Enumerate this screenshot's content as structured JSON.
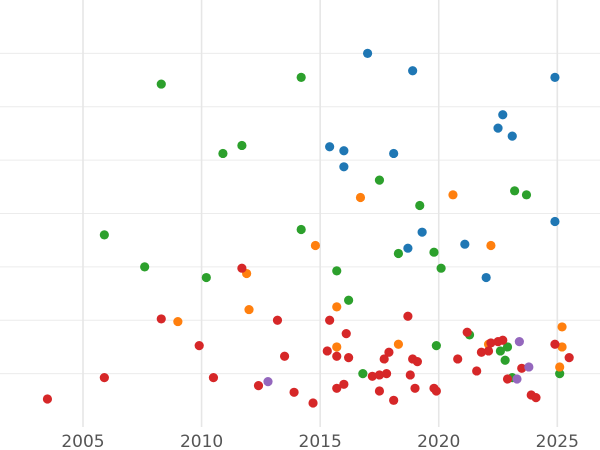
{
  "chart_data": {
    "type": "scatter",
    "title": "",
    "xlabel": "",
    "ylabel": "",
    "xlim": [
      2001.5,
      2026.8
    ],
    "ylim": [
      0,
      16
    ],
    "grid": true,
    "legend": "none",
    "x_ticks": [
      2005,
      2010,
      2015,
      2020,
      2025
    ],
    "x_tick_labels": [
      "2005",
      "2010",
      "2015",
      "2020",
      "2025"
    ],
    "y_ticks": [
      2,
      4,
      6,
      8,
      10,
      12,
      14
    ],
    "colors": {
      "red": "#d62728",
      "green": "#2ca02c",
      "blue": "#1f77b4",
      "orange": "#ff7f0e",
      "purple": "#9467bd"
    },
    "series": [
      {
        "color_key": "blue",
        "points": [
          [
            2017.0,
            14.0
          ],
          [
            2018.9,
            13.35
          ],
          [
            2024.9,
            13.1
          ],
          [
            2022.7,
            11.7
          ],
          [
            2022.5,
            11.2
          ],
          [
            2023.1,
            10.9
          ],
          [
            2015.4,
            10.5
          ],
          [
            2016.0,
            10.35
          ],
          [
            2018.1,
            10.25
          ],
          [
            2016.0,
            9.75
          ],
          [
            2019.3,
            7.3
          ],
          [
            2021.1,
            6.85
          ],
          [
            2018.7,
            6.7
          ],
          [
            2022.0,
            5.6
          ],
          [
            2024.9,
            7.7
          ]
        ]
      },
      {
        "color_key": "green",
        "points": [
          [
            2008.3,
            12.85
          ],
          [
            2014.2,
            13.1
          ],
          [
            2011.7,
            10.55
          ],
          [
            2010.9,
            10.25
          ],
          [
            2017.5,
            9.25
          ],
          [
            2023.2,
            8.85
          ],
          [
            2023.7,
            8.7
          ],
          [
            2019.2,
            8.3
          ],
          [
            2005.9,
            7.2
          ],
          [
            2014.2,
            7.4
          ],
          [
            2018.3,
            6.5
          ],
          [
            2019.8,
            6.55
          ],
          [
            2007.6,
            6.0
          ],
          [
            2020.1,
            5.95
          ],
          [
            2015.7,
            5.85
          ],
          [
            2010.2,
            5.6
          ],
          [
            2016.2,
            4.75
          ],
          [
            2021.3,
            3.45
          ],
          [
            2019.9,
            3.05
          ],
          [
            2022.9,
            3.0
          ],
          [
            2022.6,
            2.85
          ],
          [
            2022.8,
            2.5
          ],
          [
            2016.8,
            2.0
          ],
          [
            2023.1,
            1.85
          ],
          [
            2025.1,
            2.0
          ]
        ]
      },
      {
        "color_key": "orange",
        "points": [
          [
            2016.7,
            8.6
          ],
          [
            2020.6,
            8.7
          ],
          [
            2022.2,
            6.8
          ],
          [
            2014.8,
            6.8
          ],
          [
            2011.9,
            5.75
          ],
          [
            2012.0,
            4.4
          ],
          [
            2015.7,
            4.5
          ],
          [
            2009.0,
            3.95
          ],
          [
            2025.2,
            3.75
          ],
          [
            2018.3,
            3.1
          ],
          [
            2022.1,
            3.1
          ],
          [
            2025.2,
            3.0
          ],
          [
            2015.7,
            3.0
          ],
          [
            2025.1,
            2.25
          ]
        ]
      },
      {
        "color_key": "red",
        "points": [
          [
            2003.5,
            1.05
          ],
          [
            2005.9,
            1.85
          ],
          [
            2008.3,
            4.05
          ],
          [
            2009.9,
            3.05
          ],
          [
            2010.5,
            1.85
          ],
          [
            2011.7,
            5.95
          ],
          [
            2012.4,
            1.55
          ],
          [
            2013.2,
            4.0
          ],
          [
            2013.5,
            2.65
          ],
          [
            2013.9,
            1.3
          ],
          [
            2014.7,
            0.9
          ],
          [
            2015.3,
            2.85
          ],
          [
            2015.4,
            4.0
          ],
          [
            2015.7,
            1.45
          ],
          [
            2015.7,
            2.65
          ],
          [
            2016.0,
            1.6
          ],
          [
            2016.1,
            3.5
          ],
          [
            2016.2,
            2.6
          ],
          [
            2017.2,
            1.9
          ],
          [
            2017.5,
            1.95
          ],
          [
            2017.5,
            1.35
          ],
          [
            2017.7,
            2.55
          ],
          [
            2017.8,
            2.0
          ],
          [
            2017.9,
            2.8
          ],
          [
            2018.1,
            1.0
          ],
          [
            2018.7,
            4.15
          ],
          [
            2018.8,
            1.95
          ],
          [
            2018.9,
            2.55
          ],
          [
            2019.0,
            1.45
          ],
          [
            2019.1,
            2.45
          ],
          [
            2019.8,
            1.45
          ],
          [
            2019.9,
            1.35
          ],
          [
            2020.8,
            2.55
          ],
          [
            2021.2,
            3.55
          ],
          [
            2021.6,
            2.1
          ],
          [
            2021.8,
            2.8
          ],
          [
            2022.1,
            2.85
          ],
          [
            2022.2,
            3.15
          ],
          [
            2022.5,
            3.2
          ],
          [
            2022.7,
            3.25
          ],
          [
            2022.9,
            1.8
          ],
          [
            2023.5,
            2.2
          ],
          [
            2023.9,
            1.2
          ],
          [
            2024.1,
            1.1
          ],
          [
            2024.9,
            3.1
          ],
          [
            2025.5,
            2.6
          ]
        ]
      },
      {
        "color_key": "purple",
        "points": [
          [
            2012.8,
            1.7
          ],
          [
            2023.3,
            1.8
          ],
          [
            2023.4,
            3.2
          ],
          [
            2023.8,
            2.25
          ]
        ]
      }
    ]
  }
}
